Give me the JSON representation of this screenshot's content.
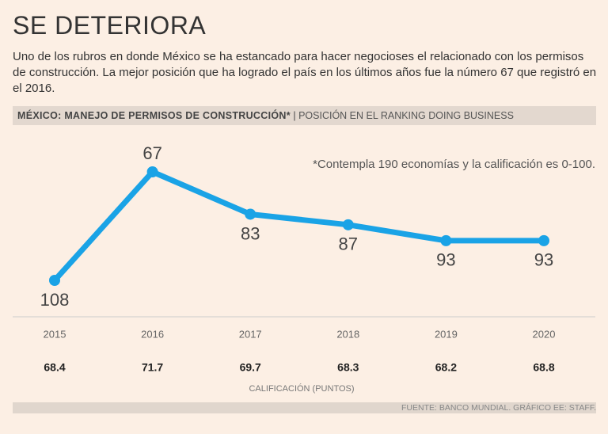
{
  "title": "SE DETERIORA",
  "subtitle": "Uno de los rubros en donde México se ha estancado para hacer negocioses el relacionado con los permisos de construcción. La mejor posición que ha logrado el país en los últimos años fue la número 67 que registró en el 2016.",
  "chart_data": {
    "type": "line",
    "title": "MÉXICO: MANEJO DE PERMISOS DE CONSTRUCCIÓN*",
    "subtitle": "POSICIÓN EN EL RANKING DOING BUSINESS",
    "annotation": "*Contempla 190 economías y la calificación es 0-100.",
    "categories": [
      "2015",
      "2016",
      "2017",
      "2018",
      "2019",
      "2020"
    ],
    "values": [
      108,
      67,
      83,
      87,
      93,
      93
    ],
    "color": "#1aa3e6",
    "inverted": true,
    "scores": {
      "name": "CALIFICACIÓN (PUNTOS)",
      "values": [
        68.4,
        71.7,
        69.7,
        68.3,
        68.2,
        68.8
      ]
    }
  },
  "source": "FUENTE: BANCO MUNDIAL. GRÁFICO EE: STAFF."
}
